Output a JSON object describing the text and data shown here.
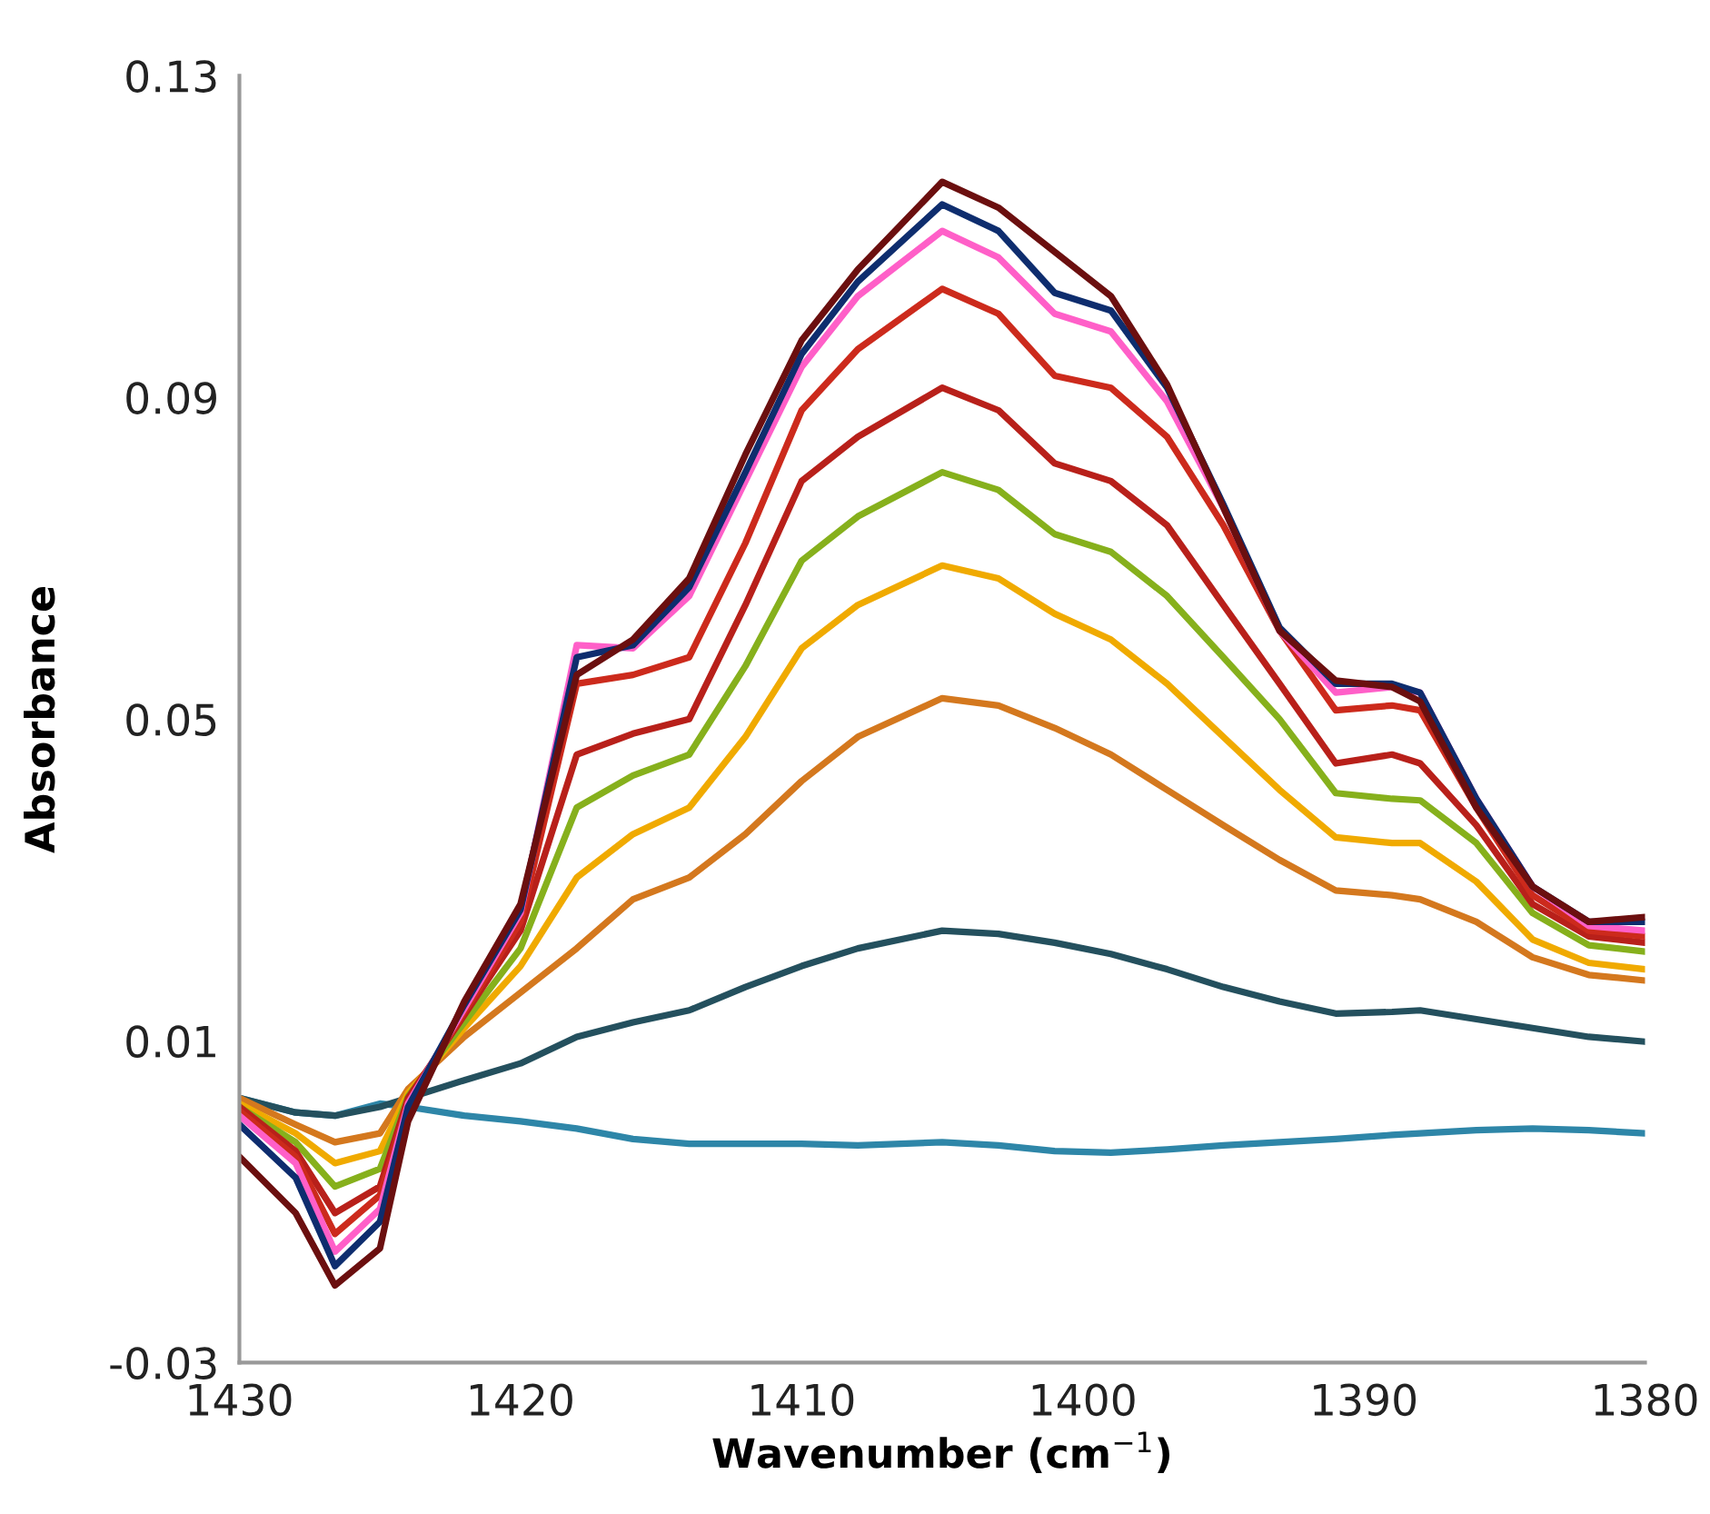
{
  "chart_data": {
    "type": "line",
    "xlabel": "Wavenumber (cm$^{−1}$)",
    "ylabel": "Absorbance",
    "x": [
      1430,
      1428,
      1426.6,
      1425,
      1424,
      1422,
      1420,
      1418,
      1416,
      1414,
      1412,
      1410,
      1408,
      1405,
      1403,
      1401,
      1399,
      1397,
      1395,
      1393,
      1391,
      1389,
      1388,
      1386,
      1384,
      1382,
      1380
    ],
    "xlim": [
      1430,
      1380
    ],
    "xticks": [
      1430,
      1420,
      1410,
      1400,
      1390,
      1380
    ],
    "ylim": [
      -0.03,
      0.13
    ],
    "yticks": [
      -0.03,
      0.01,
      0.05,
      0.09,
      0.13
    ],
    "grid": false,
    "legend": false,
    "series": [
      {
        "color": "#2e86a8",
        "values": [
          0.0029,
          0.0011,
          0.0007,
          0.0022,
          0.0018,
          0.0007,
          0.0,
          -0.0009,
          -0.0022,
          -0.0028,
          -0.0028,
          -0.0028,
          -0.003,
          -0.0026,
          -0.003,
          -0.0037,
          -0.0039,
          -0.0035,
          -0.003,
          -0.0026,
          -0.0022,
          -0.0017,
          -0.0015,
          -0.0011,
          -0.0009,
          -0.0011,
          -0.0015
        ]
      },
      {
        "color": "#24505e",
        "values": [
          0.0029,
          0.0011,
          0.0007,
          0.0018,
          0.0029,
          0.0051,
          0.0072,
          0.0105,
          0.0123,
          0.0138,
          0.0167,
          0.0193,
          0.0215,
          0.0237,
          0.0233,
          0.0222,
          0.0208,
          0.0189,
          0.0167,
          0.0149,
          0.0134,
          0.0136,
          0.0138,
          0.0127,
          0.0116,
          0.0105,
          0.0099
        ]
      },
      {
        "color": "#d4781e",
        "values": [
          0.0029,
          -0.0004,
          -0.0026,
          -0.0015,
          0.004,
          0.0105,
          0.016,
          0.0215,
          0.0276,
          0.0303,
          0.0357,
          0.0423,
          0.0478,
          0.0526,
          0.0517,
          0.0489,
          0.0456,
          0.0412,
          0.0368,
          0.0325,
          0.0287,
          0.0281,
          0.0276,
          0.0248,
          0.0204,
          0.0182,
          0.0175
        ]
      },
      {
        "color": "#f0aa00",
        "values": [
          0.0022,
          -0.0015,
          -0.0052,
          -0.0037,
          0.0035,
          0.0116,
          0.0193,
          0.0303,
          0.0357,
          0.039,
          0.0478,
          0.0588,
          0.0642,
          0.0691,
          0.0675,
          0.0631,
          0.0599,
          0.0544,
          0.0478,
          0.0412,
          0.0353,
          0.0346,
          0.0346,
          0.0298,
          0.0226,
          0.0197,
          0.0189
        ]
      },
      {
        "color": "#86b01c",
        "values": [
          0.0018,
          -0.0026,
          -0.0081,
          -0.0059,
          0.0031,
          0.0123,
          0.0215,
          0.039,
          0.043,
          0.0456,
          0.0566,
          0.0697,
          0.0752,
          0.0807,
          0.0785,
          0.073,
          0.0708,
          0.0653,
          0.0577,
          0.05,
          0.0408,
          0.0401,
          0.0399,
          0.0346,
          0.0259,
          0.0219,
          0.0211
        ]
      },
      {
        "color": "#b8201a",
        "values": [
          0.0018,
          -0.0037,
          -0.0114,
          -0.0081,
          0.0029,
          0.0132,
          0.0237,
          0.0456,
          0.0482,
          0.05,
          0.0642,
          0.0796,
          0.0851,
          0.0912,
          0.0884,
          0.0818,
          0.0796,
          0.0741,
          0.0642,
          0.0544,
          0.0445,
          0.0456,
          0.0445,
          0.0368,
          0.027,
          0.023,
          0.0222
        ]
      },
      {
        "color": "#cc2a1c",
        "values": [
          0.0013,
          -0.0044,
          -0.014,
          -0.0092,
          0.0024,
          0.0136,
          0.0248,
          0.0544,
          0.0555,
          0.0577,
          0.0719,
          0.0884,
          0.096,
          0.1035,
          0.1004,
          0.0927,
          0.0912,
          0.0851,
          0.0741,
          0.061,
          0.0511,
          0.0517,
          0.0511,
          0.039,
          0.0281,
          0.0237,
          0.023
        ]
      },
      {
        "color": "#ff5fc8",
        "values": [
          0.0007,
          -0.0052,
          -0.0162,
          -0.0109,
          0.0022,
          0.014,
          0.0259,
          0.0592,
          0.0588,
          0.0653,
          0.0796,
          0.0938,
          0.1026,
          0.1107,
          0.1074,
          0.1004,
          0.0982,
          0.0895,
          0.0763,
          0.061,
          0.0533,
          0.054,
          0.0533,
          0.0401,
          0.0292,
          0.0243,
          0.0237
        ]
      },
      {
        "color": "#0e2d6e",
        "values": [
          -0.0004,
          -0.007,
          -0.018,
          -0.0125,
          0.0018,
          0.0145,
          0.0263,
          0.0577,
          0.0592,
          0.0664,
          0.0807,
          0.0954,
          0.1044,
          0.114,
          0.1107,
          0.103,
          0.1008,
          0.0912,
          0.0767,
          0.0614,
          0.0544,
          0.0544,
          0.0533,
          0.0401,
          0.0292,
          0.0248,
          0.0248
        ]
      },
      {
        "color": "#6b0f0f",
        "values": [
          -0.0044,
          -0.0114,
          -0.0204,
          -0.0158,
          0.0,
          0.0149,
          0.027,
          0.0555,
          0.0599,
          0.0675,
          0.0829,
          0.0971,
          0.1059,
          0.1168,
          0.1136,
          0.1081,
          0.1026,
          0.0916,
          0.0763,
          0.061,
          0.0548,
          0.054,
          0.0522,
          0.039,
          0.0292,
          0.0248,
          0.0254
        ]
      }
    ]
  }
}
